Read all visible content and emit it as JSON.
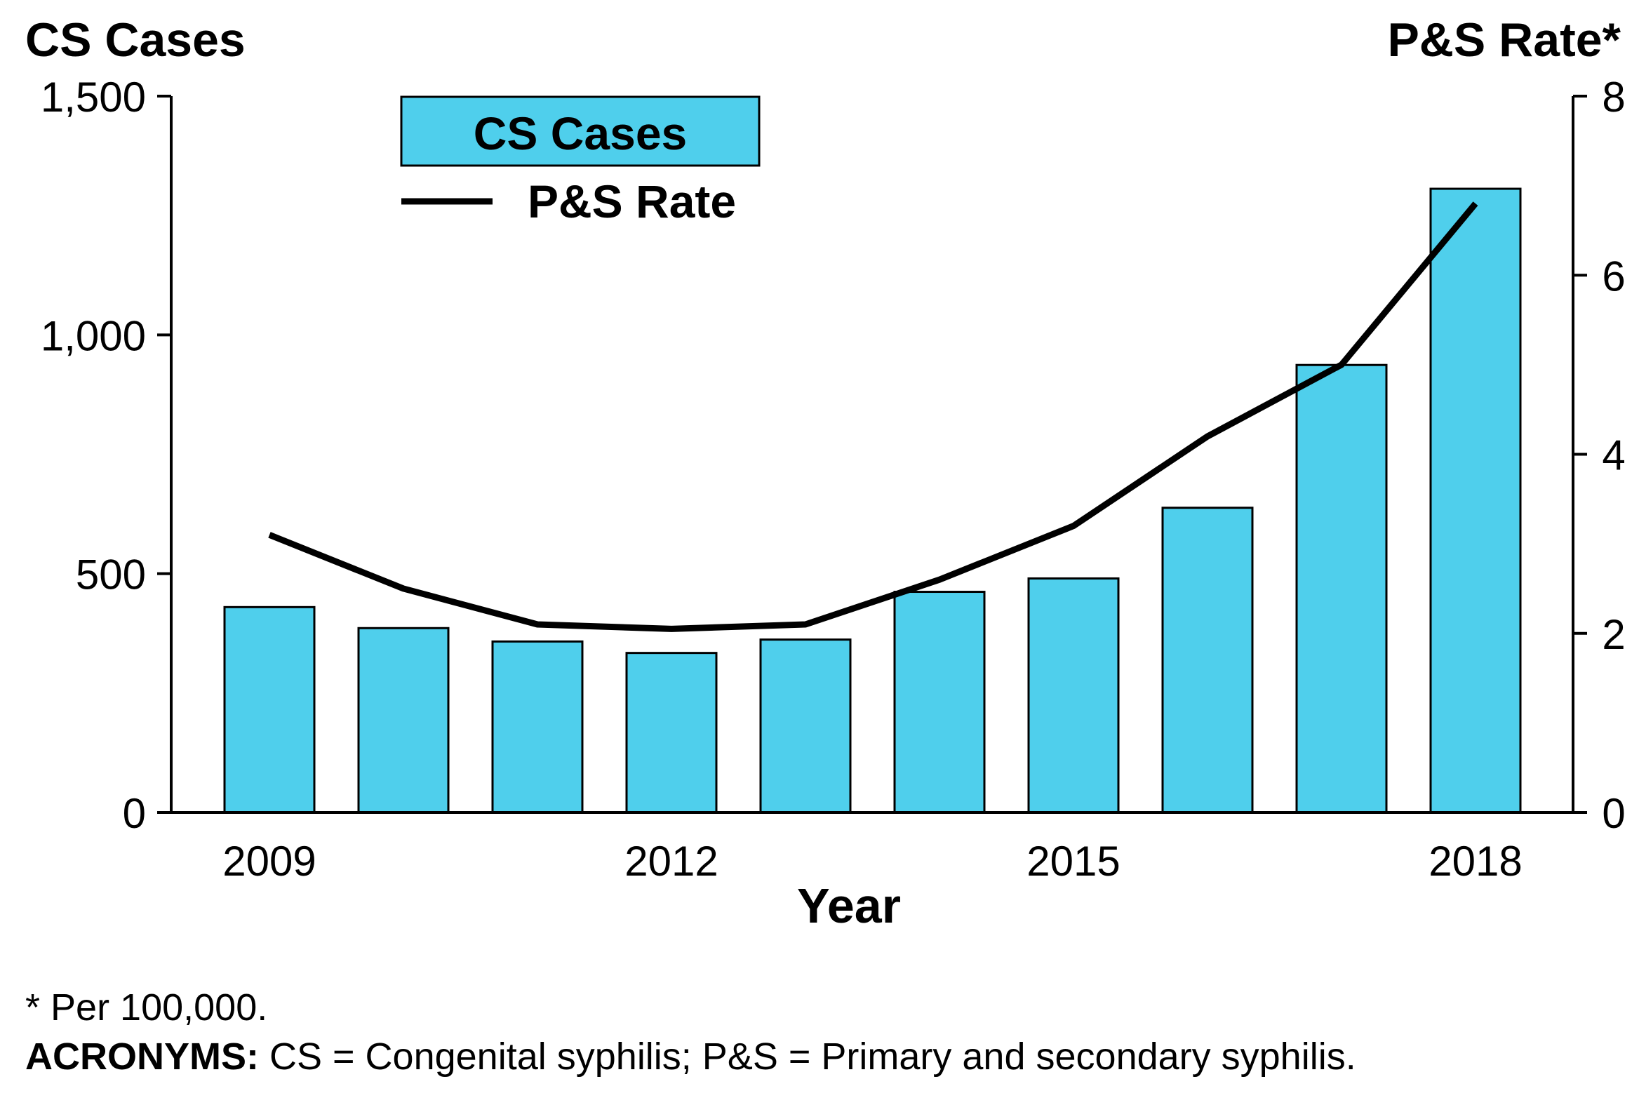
{
  "chart_data": {
    "type": "bar",
    "categories": [
      "2009",
      "2010",
      "2011",
      "2012",
      "2013",
      "2014",
      "2015",
      "2016",
      "2017",
      "2018"
    ],
    "x_tick_labels": [
      "2009",
      "2012",
      "2015",
      "2018"
    ],
    "xlabel": "Year",
    "y_left": {
      "label": "CS Cases",
      "lim": [
        0,
        1500
      ],
      "ticks": [
        0,
        500,
        1000,
        1500
      ],
      "tick_labels": [
        "0",
        "500",
        "1,000",
        "1,500"
      ]
    },
    "y_right": {
      "label": "P&S Rate*",
      "lim": [
        0,
        8
      ],
      "ticks": [
        0,
        2,
        4,
        6,
        8
      ],
      "tick_labels": [
        "0",
        "2",
        "4",
        "6",
        "8"
      ]
    },
    "series": [
      {
        "name": "CS Cases",
        "type": "bar",
        "axis": "left",
        "color": "#4fcfec",
        "values": [
          430,
          386,
          358,
          334,
          362,
          462,
          490,
          638,
          937,
          1306
        ]
      },
      {
        "name": "P&S Rate",
        "type": "line",
        "axis": "right",
        "color": "#000000",
        "values": [
          3.1,
          2.5,
          2.1,
          2.05,
          2.1,
          2.6,
          3.2,
          4.2,
          5.0,
          6.8
        ]
      }
    ],
    "legend": {
      "position": "top-left"
    },
    "grid": false
  },
  "footnotes": {
    "per": "* Per 100,000.",
    "acronyms_label": "ACRONYMS:",
    "acronyms_text": " CS = Congenital syphilis; P&S = Primary and secondary syphilis."
  }
}
